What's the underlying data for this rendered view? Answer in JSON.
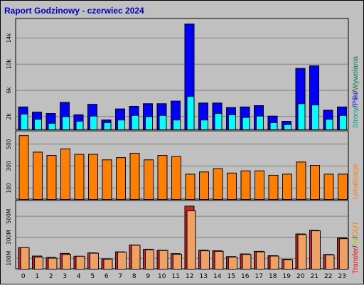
{
  "title": "Raport Godzinowy -  czerwiec 2024",
  "colors": {
    "background": "#c0c0c0",
    "title": "#0000c0",
    "pages": "#0000ff",
    "files": "#00ffff",
    "hits": "#00805c",
    "kvisits": "#ff8000",
    "transfer_total": "#ff0000",
    "transfer_in": "#ffff00",
    "transfer_out": "#ffa050"
  },
  "labels": {
    "top_right": [
      "Strony",
      "Pliki",
      "Wywolania"
    ],
    "middle_right": "Lokalizacje",
    "bottom_right": [
      "Transfer",
      "IN",
      "OUT"
    ]
  },
  "chart_data": [
    {
      "type": "bar",
      "name": "top",
      "categories": [
        "0",
        "1",
        "2",
        "3",
        "4",
        "5",
        "6",
        "7",
        "8",
        "9",
        "10",
        "11",
        "12",
        "13",
        "14",
        "15",
        "16",
        "17",
        "18",
        "19",
        "20",
        "21",
        "22",
        "23"
      ],
      "ylim": [
        0,
        17000
      ],
      "yticks": [
        "2k",
        "6k",
        "10k",
        "14k"
      ],
      "ytick_values": [
        2000,
        6000,
        10000,
        14000
      ],
      "series": [
        {
          "name": "Strony",
          "values": [
            3500,
            2700,
            2500,
            4200,
            2300,
            3900,
            1500,
            3200,
            3600,
            4000,
            4000,
            4400,
            16200,
            4100,
            4100,
            3400,
            3500,
            3700,
            2100,
            1300,
            9400,
            9800,
            3000,
            3500
          ]
        },
        {
          "name": "Pliki",
          "values": [
            2400,
            1600,
            1000,
            2000,
            1300,
            2100,
            1100,
            1500,
            2200,
            2000,
            2200,
            1500,
            5100,
            1500,
            2500,
            2300,
            1900,
            2100,
            1100,
            800,
            4000,
            3800,
            1600,
            2200
          ]
        }
      ]
    },
    {
      "type": "bar",
      "name": "middle",
      "categories": [
        "0",
        "1",
        "2",
        "3",
        "4",
        "5",
        "6",
        "7",
        "8",
        "9",
        "10",
        "11",
        "12",
        "13",
        "14",
        "15",
        "16",
        "17",
        "18",
        "19",
        "20",
        "21",
        "22",
        "23"
      ],
      "ylim": [
        0,
        620
      ],
      "yticks": [
        "100",
        "300",
        "500"
      ],
      "ytick_values": [
        100,
        300,
        500
      ],
      "series": [
        {
          "name": "Lokalizacje",
          "values": [
            580,
            430,
            400,
            460,
            410,
            410,
            360,
            380,
            420,
            360,
            400,
            390,
            230,
            250,
            280,
            240,
            260,
            260,
            220,
            230,
            340,
            310,
            230,
            230
          ]
        }
      ]
    },
    {
      "type": "bar",
      "name": "bottom",
      "categories": [
        "0",
        "1",
        "2",
        "3",
        "4",
        "5",
        "6",
        "7",
        "8",
        "9",
        "10",
        "11",
        "12",
        "13",
        "14",
        "15",
        "16",
        "17",
        "18",
        "19",
        "20",
        "21",
        "22",
        "23"
      ],
      "ylim": [
        0,
        650
      ],
      "yticks": [
        "100M",
        "300M",
        "500M"
      ],
      "ytick_values": [
        100,
        300,
        500
      ],
      "series": [
        {
          "name": "Transfer",
          "values": [
            205,
            125,
            112,
            150,
            123,
            155,
            98,
            165,
            230,
            190,
            180,
            148,
            600,
            180,
            175,
            120,
            145,
            170,
            128,
            95,
            335,
            370,
            140,
            298
          ]
        },
        {
          "name": "OUT",
          "values": [
            205,
            115,
            105,
            140,
            123,
            152,
            95,
            162,
            228,
            185,
            178,
            142,
            555,
            175,
            170,
            115,
            140,
            165,
            125,
            90,
            330,
            365,
            135,
            290
          ]
        }
      ]
    }
  ]
}
